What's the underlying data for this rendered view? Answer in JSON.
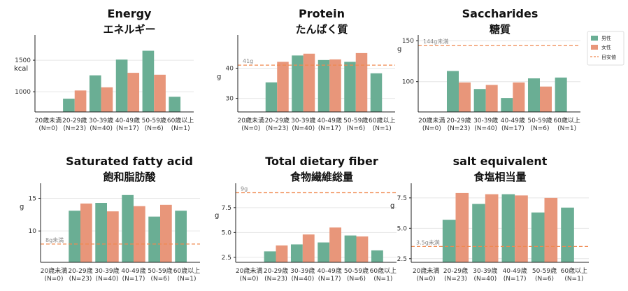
{
  "colors": {
    "male": "#6aae94",
    "female": "#e8967a",
    "reference": "#f0884e",
    "grid": "#e6e6e6",
    "axis": "#222222"
  },
  "legend": {
    "male": "男性",
    "female": "女性",
    "reference": "目安値"
  },
  "chart_data": [
    {
      "type": "bar",
      "title": "Energy",
      "subtitle": "エネルギー",
      "ylabel": "kcal",
      "categories": [
        "20歳未満\n(N=0)",
        "20-29歳\n(N=23)",
        "30-39歳\n(N=40)",
        "40-49歳\n(N=17)",
        "50-59歳\n(N=6)",
        "60歳以上\n(N=1)"
      ],
      "series": [
        {
          "name": "男性",
          "values": [
            null,
            890,
            1260,
            1510,
            1650,
            920
          ]
        },
        {
          "name": "女性",
          "values": [
            null,
            1020,
            1070,
            1300,
            1270,
            null
          ]
        }
      ],
      "ylim": [
        680,
        1900
      ],
      "yticks": [
        1000,
        1500
      ],
      "reference": null
    },
    {
      "type": "bar",
      "title": "Protein",
      "subtitle": "たんぱく質",
      "ylabel": "g",
      "categories": [
        "20歳未満\n(N=0)",
        "20-29歳\n(N=23)",
        "30-39歳\n(N=40)",
        "40-49歳\n(N=17)",
        "50-59歳\n(N=6)",
        "60歳以上\n(N=1)"
      ],
      "series": [
        {
          "name": "男性",
          "values": [
            null,
            35.3,
            44.2,
            42.7,
            42.1,
            38.3
          ]
        },
        {
          "name": "女性",
          "values": [
            null,
            42.1,
            44.8,
            42.9,
            45.0,
            null
          ]
        }
      ],
      "ylim": [
        25.5,
        51
      ],
      "yticks": [
        30,
        40
      ],
      "reference": {
        "value": 41,
        "label": "41g"
      }
    },
    {
      "type": "bar",
      "title": "Saccharides",
      "subtitle": "糖質",
      "ylabel": "g",
      "categories": [
        "20歳未満\n(N=0)",
        "20-29歳\n(N=23)",
        "30-39歳\n(N=40)",
        "40-49歳\n(N=17)",
        "50-59歳\n(N=6)",
        "60歳以上\n(N=1)"
      ],
      "series": [
        {
          "name": "男性",
          "values": [
            null,
            113,
            91,
            80,
            104,
            105
          ]
        },
        {
          "name": "女性",
          "values": [
            null,
            99,
            96,
            99,
            94,
            null
          ]
        }
      ],
      "ylim": [
        63,
        157
      ],
      "yticks": [
        100,
        150
      ],
      "reference": {
        "value": 144,
        "label": "144g未満"
      },
      "legend": true
    },
    {
      "type": "bar",
      "title": "Saturated fatty acid",
      "subtitle": "飽和脂肪酸",
      "ylabel": "g",
      "categories": [
        "20歳未満\n(N=0)",
        "20-29歳\n(N=23)",
        "30-39歳\n(N=40)",
        "40-49歳\n(N=17)",
        "50-59歳\n(N=6)",
        "60歳以上\n(N=1)"
      ],
      "series": [
        {
          "name": "男性",
          "values": [
            null,
            13.1,
            14.3,
            15.5,
            12.2,
            13.1
          ]
        },
        {
          "name": "女性",
          "values": [
            null,
            14.2,
            13.0,
            13.8,
            14.0,
            null
          ]
        }
      ],
      "ylim": [
        5.2,
        17.3
      ],
      "yticks": [
        10,
        15
      ],
      "reference": {
        "value": 8,
        "label": "8g未満"
      }
    },
    {
      "type": "bar",
      "title": "Total dietary fiber",
      "subtitle": "食物繊維総量",
      "ylabel": "g",
      "categories": [
        "20歳未満\n(N=0)",
        "20-29歳\n(N=23)",
        "30-39歳\n(N=40)",
        "40-49歳\n(N=17)",
        "50-59歳\n(N=6)",
        "60歳以上\n(N=1)"
      ],
      "series": [
        {
          "name": "男性",
          "values": [
            null,
            3.1,
            3.8,
            4.0,
            4.7,
            3.2
          ]
        },
        {
          "name": "女性",
          "values": [
            null,
            3.7,
            4.8,
            5.5,
            4.6,
            null
          ]
        }
      ],
      "ylim": [
        2.0,
        9.95
      ],
      "yticks": [
        2.5,
        5.0,
        7.5
      ],
      "reference": {
        "value": 9,
        "label": "9g"
      }
    },
    {
      "type": "bar",
      "title": "salt equivalent",
      "subtitle": "食塩相当量",
      "ylabel": "g",
      "categories": [
        "20歳未満\n(N=0)",
        "20-29歳\n(N=23)",
        "30-39歳\n(N=40)",
        "40-49歳\n(N=17)",
        "50-59歳\n(N=6)",
        "60歳以上\n(N=1)"
      ],
      "series": [
        {
          "name": "男性",
          "values": [
            null,
            5.7,
            7.0,
            7.8,
            6.3,
            6.7
          ]
        },
        {
          "name": "女性",
          "values": [
            null,
            7.9,
            7.8,
            7.7,
            7.5,
            null
          ]
        }
      ],
      "ylim": [
        2.2,
        8.7
      ],
      "yticks": [
        2.5,
        5.0,
        7.5
      ],
      "reference": {
        "value": 3.5,
        "label": "3.5g未満"
      }
    }
  ]
}
